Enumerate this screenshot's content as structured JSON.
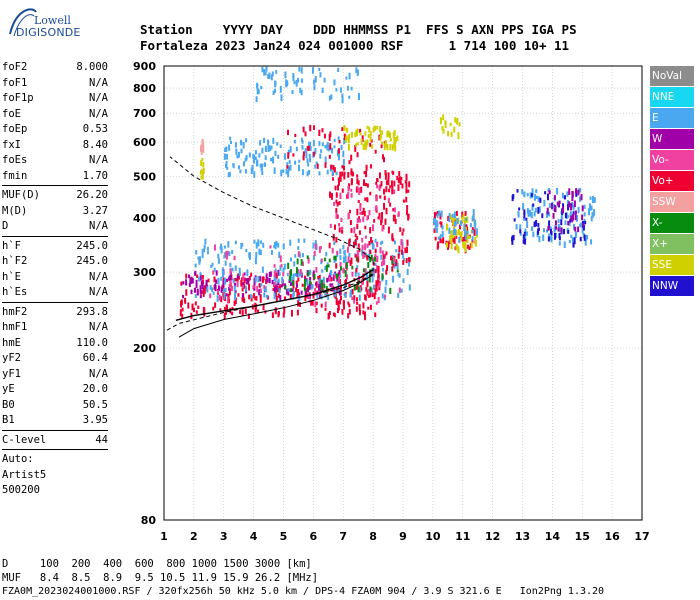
{
  "logo": {
    "top": "Lowell",
    "bottom": "DIGISONDE"
  },
  "header": {
    "row1": [
      "Station",
      "YYYY",
      "DAY",
      "DDD",
      "HHMMSS",
      "P1",
      "FFS",
      "S",
      "AXN",
      "PPS",
      "IGA",
      "PS"
    ],
    "row2": [
      "Fortaleza",
      "2023",
      "Jan24",
      "024",
      "001000",
      "RSF",
      "",
      "1",
      "714",
      "100",
      "10+",
      "11"
    ]
  },
  "params": {
    "group1": [
      {
        "label": "foF2",
        "value": "8.000"
      },
      {
        "label": "foF1",
        "value": "N/A"
      },
      {
        "label": "foF1p",
        "value": "N/A"
      },
      {
        "label": "foE",
        "value": "N/A"
      },
      {
        "label": "foEp",
        "value": "0.53"
      },
      {
        "label": "fxI",
        "value": "8.40"
      },
      {
        "label": "foEs",
        "value": "N/A"
      },
      {
        "label": "fmin",
        "value": "1.70"
      }
    ],
    "group2": [
      {
        "label": "MUF(D)",
        "value": "26.20"
      },
      {
        "label": "M(D)",
        "value": "3.27"
      },
      {
        "label": "D",
        "value": "N/A"
      }
    ],
    "group3": [
      {
        "label": "h`F",
        "value": "245.0"
      },
      {
        "label": "h`F2",
        "value": "245.0"
      },
      {
        "label": "h`E",
        "value": "N/A"
      },
      {
        "label": "h`Es",
        "value": "N/A"
      }
    ],
    "group4": [
      {
        "label": "hmF2",
        "value": "293.8"
      },
      {
        "label": "hmF1",
        "value": "N/A"
      },
      {
        "label": "hmE",
        "value": "110.0"
      },
      {
        "label": "yF2",
        "value": "60.4"
      },
      {
        "label": "yF1",
        "value": "N/A"
      },
      {
        "label": "yE",
        "value": "20.0"
      },
      {
        "label": "B0",
        "value": "50.5"
      },
      {
        "label": "B1",
        "value": "3.95"
      }
    ],
    "clevel": {
      "label": "C-level",
      "value": "44"
    },
    "auto": [
      "Auto:",
      "Artist5",
      "500200"
    ]
  },
  "legend": [
    {
      "label": "NoVal",
      "color": "#8c8c8c"
    },
    {
      "label": "NNE",
      "color": "#17d8f0"
    },
    {
      "label": "E",
      "color": "#4aa8f0"
    },
    {
      "label": "W",
      "color": "#a000a8"
    },
    {
      "label": "Vo-",
      "color": "#f040a0"
    },
    {
      "label": "Vo+",
      "color": "#ee0033"
    },
    {
      "label": "SSW",
      "color": "#f4a0a0"
    },
    {
      "label": "X-",
      "color": "#088c10"
    },
    {
      "label": "X+",
      "color": "#80c060"
    },
    {
      "label": "SSE",
      "color": "#d0d000"
    },
    {
      "label": "NNW",
      "color": "#2010d0"
    }
  ],
  "footer": {
    "d_row": "D     100  200  400  600  800 1000 1500 3000 [km]",
    "muf_row": "MUF   8.4  8.5  8.9  9.5 10.5 11.9 15.9 26.2 [MHz]",
    "info_row": "FZA0M_2023024001000.RSF / 320fx256h 50 kHz 5.0 km / DPS-4 FZA0M 904 / 3.9 S 321.6 E   Ion2Png 1.3.20"
  },
  "chart_data": {
    "type": "scatter",
    "x_ticks": [
      1,
      2,
      3,
      4,
      5,
      6,
      7,
      8,
      9,
      10,
      11,
      12,
      13,
      14,
      15,
      16,
      17
    ],
    "y_ticks": [
      80,
      200,
      300,
      400,
      500,
      600,
      700,
      800,
      900
    ],
    "xlim": [
      1,
      17
    ],
    "ylim": [
      80,
      900
    ],
    "y_scale": "log",
    "grid": true,
    "scaled_profile": [
      [
        1.5,
        212
      ],
      [
        2.0,
        222
      ],
      [
        3.0,
        233
      ],
      [
        4.0,
        240
      ],
      [
        5.0,
        248
      ],
      [
        6.0,
        258
      ],
      [
        7.0,
        272
      ],
      [
        7.5,
        282
      ],
      [
        7.8,
        290
      ],
      [
        8.0,
        296
      ]
    ],
    "trace_curve": [
      [
        1.4,
        232
      ],
      [
        2.0,
        238
      ],
      [
        3.0,
        244
      ],
      [
        4.0,
        250
      ],
      [
        5.0,
        258
      ],
      [
        6.0,
        266
      ],
      [
        7.0,
        280
      ],
      [
        7.6,
        292
      ],
      [
        8.0,
        304
      ]
    ],
    "dashed_profile": [
      [
        1.1,
        220
      ],
      [
        1.5,
        228
      ],
      [
        3.0,
        242
      ],
      [
        4.5,
        254
      ],
      [
        6.0,
        266
      ],
      [
        7.0,
        276
      ],
      [
        7.6,
        286
      ],
      [
        8.0,
        298
      ],
      [
        8.0,
        320
      ],
      [
        7.5,
        340
      ],
      [
        6.8,
        358
      ],
      [
        6.0,
        376
      ],
      [
        5.0,
        400
      ],
      [
        4.0,
        425
      ],
      [
        3.0,
        458
      ],
      [
        2.0,
        500
      ],
      [
        1.2,
        555
      ]
    ],
    "clusters": [
      {
        "color": "#ee0033",
        "xr": [
          1.5,
          8.2
        ],
        "yr": [
          240,
          300
        ],
        "n": 260
      },
      {
        "color": "#a000a8",
        "xr": [
          1.6,
          7.0
        ],
        "yr": [
          265,
          305
        ],
        "n": 110
      },
      {
        "color": "#4aa8f0",
        "xr": [
          2.0,
          9.2
        ],
        "yr": [
          265,
          360
        ],
        "n": 230
      },
      {
        "color": "#f040a0",
        "xr": [
          2.5,
          9.0
        ],
        "yr": [
          255,
          350
        ],
        "n": 90
      },
      {
        "color": "#088c10",
        "xr": [
          5.0,
          8.8
        ],
        "yr": [
          275,
          330
        ],
        "n": 50
      },
      {
        "color": "#ee0033",
        "xr": [
          6.5,
          9.2
        ],
        "yr": [
          300,
          520
        ],
        "n": 180
      },
      {
        "color": "#f040a0",
        "xr": [
          6.5,
          9.0
        ],
        "yr": [
          320,
          480
        ],
        "n": 50
      },
      {
        "color": "#ee0033",
        "xr": [
          10.0,
          11.4
        ],
        "yr": [
          340,
          420
        ],
        "n": 60
      },
      {
        "color": "#d0d000",
        "xr": [
          10.4,
          11.5
        ],
        "yr": [
          340,
          410
        ],
        "n": 50
      },
      {
        "color": "#4aa8f0",
        "xr": [
          10.0,
          11.5
        ],
        "yr": [
          360,
          420
        ],
        "n": 40
      },
      {
        "color": "#4aa8f0",
        "xr": [
          12.7,
          15.4
        ],
        "yr": [
          350,
          470
        ],
        "n": 110
      },
      {
        "color": "#2010d0",
        "xr": [
          12.5,
          15.2
        ],
        "yr": [
          350,
          470
        ],
        "n": 60
      },
      {
        "color": "#a000a8",
        "xr": [
          13.8,
          15.0
        ],
        "yr": [
          380,
          470
        ],
        "n": 40
      },
      {
        "color": "#4aa8f0",
        "xr": [
          3.0,
          7.0
        ],
        "yr": [
          510,
          620
        ],
        "n": 130
      },
      {
        "color": "#ee0033",
        "xr": [
          5.0,
          8.5
        ],
        "yr": [
          520,
          660
        ],
        "n": 50
      },
      {
        "color": "#d0d000",
        "xr": [
          7.0,
          8.8
        ],
        "yr": [
          590,
          660
        ],
        "n": 60
      },
      {
        "color": "#4aa8f0",
        "xr": [
          4.0,
          7.5
        ],
        "yr": [
          760,
          900
        ],
        "n": 60
      },
      {
        "color": "#d0d000",
        "xr": [
          10.2,
          10.9
        ],
        "yr": [
          630,
          700
        ],
        "n": 15
      },
      {
        "color": "#d0d000",
        "xr": [
          2.2,
          2.3
        ],
        "yr": [
          500,
          560
        ],
        "n": 8
      },
      {
        "color": "#f4a0a0",
        "xr": [
          2.2,
          2.3
        ],
        "yr": [
          570,
          640
        ],
        "n": 8
      }
    ]
  }
}
